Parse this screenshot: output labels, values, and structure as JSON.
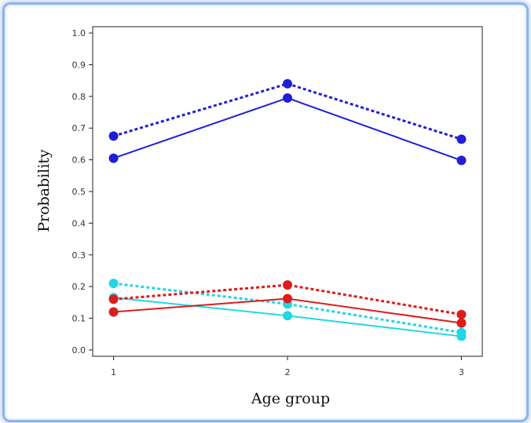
{
  "chart_data": {
    "type": "line",
    "title": "",
    "xlabel": "Age group",
    "ylabel": "Probability",
    "x": [
      1,
      2,
      3
    ],
    "x_tick_labels": [
      "1",
      "2",
      "3"
    ],
    "xlim": [
      0.88,
      3.12
    ],
    "ylim": [
      -0.02,
      1.02
    ],
    "y_ticks": [
      0.0,
      0.1,
      0.2,
      0.3,
      0.4,
      0.5,
      0.6,
      0.7,
      0.8,
      0.9,
      1.0
    ],
    "y_tick_labels": [
      "0.0",
      "0.1",
      "0.2",
      "0.3",
      "0.4",
      "0.5",
      "0.6",
      "0.7",
      "0.8",
      "0.9",
      "1.0"
    ],
    "grid": false,
    "legend": "none",
    "series": [
      {
        "values": [
          0.675,
          0.84,
          0.665
        ],
        "color": "#1f1fd6",
        "dashed": true
      },
      {
        "values": [
          0.605,
          0.795,
          0.598
        ],
        "color": "#1f1fd6",
        "dashed": false
      },
      {
        "values": [
          0.21,
          0.145,
          0.055
        ],
        "color": "#22d6e3",
        "dashed": true
      },
      {
        "values": [
          0.165,
          0.108,
          0.043
        ],
        "color": "#22d6e3",
        "dashed": false
      },
      {
        "values": [
          0.16,
          0.205,
          0.112
        ],
        "color": "#dd1c1c",
        "dashed": true
      },
      {
        "values": [
          0.12,
          0.162,
          0.085
        ],
        "color": "#dd1c1c",
        "dashed": false
      }
    ]
  }
}
